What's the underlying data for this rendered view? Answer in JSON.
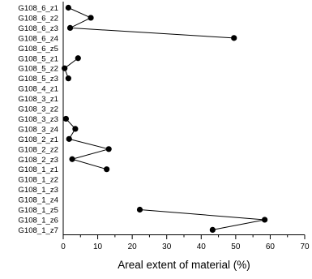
{
  "chart_data": {
    "type": "line",
    "orientation": "horizontal",
    "title": "",
    "xlabel": "Areal extent of material (%)",
    "ylabel": "",
    "xlim": [
      0,
      70
    ],
    "xticks": [
      0,
      10,
      20,
      30,
      40,
      50,
      60,
      70
    ],
    "grid": false,
    "legend": "none",
    "categories": [
      "G108_6_z1",
      "G108_6_z2",
      "G108_6_z3",
      "G108_6_z4",
      "G108_6_z5",
      "G108_5_z1",
      "G108_5_z2",
      "G108_5_z3",
      "G108_4_z1",
      "G108_3_z1",
      "G108_3_z2",
      "G108_3_z3",
      "G108_3_z4",
      "G108_2_z1",
      "G108_2_z2",
      "G108_2_z3",
      "G108_1_z1",
      "G108_1_z2",
      "G108_1_z3",
      "G108_1_z4",
      "G108_1_z5",
      "G108_1_z6",
      "G108_1_z7"
    ],
    "series": [
      {
        "color": "#000000",
        "values": [
          1.5,
          8,
          2,
          49.5,
          null,
          4.3,
          0.4,
          1.5,
          null,
          null,
          null,
          0.8,
          3.5,
          1.7,
          13.2,
          2.6,
          12.6,
          null,
          null,
          null,
          22.2,
          58.4,
          43.3
        ]
      }
    ]
  }
}
